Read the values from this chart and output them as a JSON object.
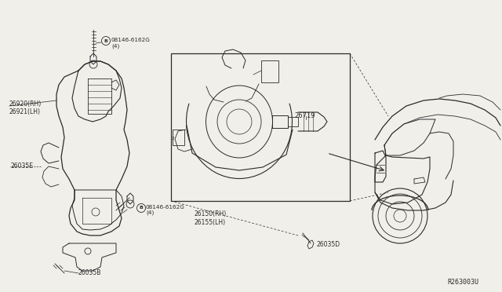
{
  "bg_color": "#f0efea",
  "line_color": "#2a2a2a",
  "ref_code": "R263003U",
  "labels": {
    "bolt_top": "08146-6162G\n(4)",
    "bolt_top_b": "B",
    "bolt_bottom": "08146-6162G\n(4)",
    "bolt_bottom_b": "B",
    "part_rh": "26920(RH)\n26921(LH)",
    "part_26035E": "26035E",
    "part_26035B": "26035B",
    "part_26719": "26719",
    "part_26150": "26150(RH)\n26155(LH)",
    "part_26035D": "26035D"
  },
  "figsize": [
    6.4,
    3.72
  ],
  "dpi": 100
}
